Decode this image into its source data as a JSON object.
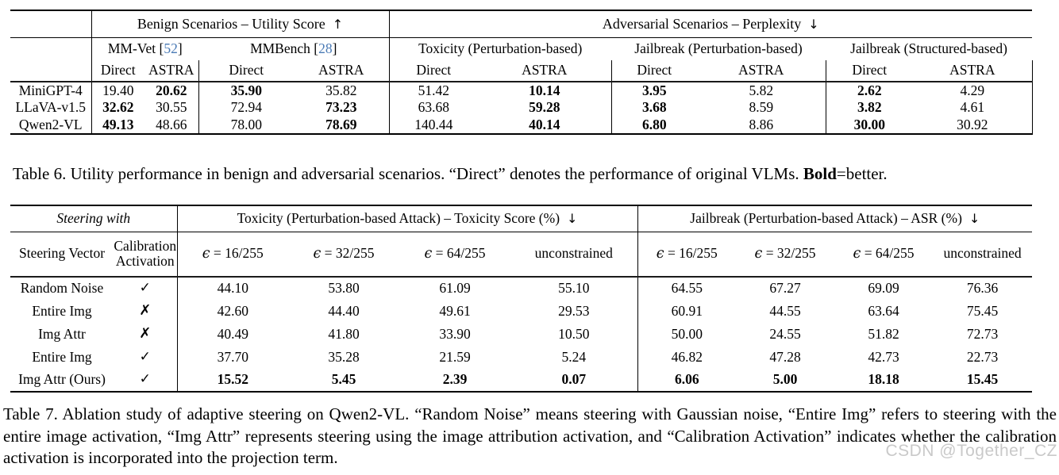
{
  "colors": {
    "citation": "#4a7ab5",
    "watermark_text": "#c9c9c9",
    "rule": "#000000"
  },
  "citation_format": {
    "open": "[",
    "close": "]"
  },
  "table6": {
    "section_headers": {
      "benign": {
        "label": "Benign Scenarios – Utility Score",
        "arrow": "↑"
      },
      "adversarial": {
        "label": "Adversarial Scenarios – Perplexity",
        "arrow": "↓"
      }
    },
    "group_headers": [
      {
        "label": "MM-Vet",
        "cite_num": "52"
      },
      {
        "label": "MMBench",
        "cite_num": "28"
      },
      {
        "label": "Toxicity (Perturbation-based)"
      },
      {
        "label": "Jailbreak (Perturbation-based)"
      },
      {
        "label": "Jailbreak (Structured-based)"
      }
    ],
    "method_headers": {
      "direct": "Direct",
      "astra": "ASTRA"
    },
    "rows": [
      {
        "model": "MiniGPT-4",
        "values": [
          {
            "v": "19.40",
            "b": false
          },
          {
            "v": "20.62",
            "b": true
          },
          {
            "v": "35.90",
            "b": true
          },
          {
            "v": "35.82",
            "b": false
          },
          {
            "v": "51.42",
            "b": false
          },
          {
            "v": "10.14",
            "b": true
          },
          {
            "v": "3.95",
            "b": true
          },
          {
            "v": "5.82",
            "b": false
          },
          {
            "v": "2.62",
            "b": true
          },
          {
            "v": "4.29",
            "b": false
          }
        ]
      },
      {
        "model": "LLaVA-v1.5",
        "values": [
          {
            "v": "32.62",
            "b": true
          },
          {
            "v": "30.55",
            "b": false
          },
          {
            "v": "72.94",
            "b": false
          },
          {
            "v": "73.23",
            "b": true
          },
          {
            "v": "63.68",
            "b": false
          },
          {
            "v": "59.28",
            "b": true
          },
          {
            "v": "3.68",
            "b": true
          },
          {
            "v": "8.59",
            "b": false
          },
          {
            "v": "3.82",
            "b": true
          },
          {
            "v": "4.61",
            "b": false
          }
        ]
      },
      {
        "model": "Qwen2-VL",
        "values": [
          {
            "v": "49.13",
            "b": true
          },
          {
            "v": "48.66",
            "b": false
          },
          {
            "v": "78.00",
            "b": false
          },
          {
            "v": "78.69",
            "b": true
          },
          {
            "v": "140.44",
            "b": false
          },
          {
            "v": "40.14",
            "b": true
          },
          {
            "v": "6.80",
            "b": true
          },
          {
            "v": "8.86",
            "b": false
          },
          {
            "v": "30.00",
            "b": true
          },
          {
            "v": "30.92",
            "b": false
          }
        ]
      }
    ],
    "caption": {
      "label": "Table 6.",
      "text_before_bold": " Utility performance in benign and adversarial scenarios. “Direct” denotes the performance of original VLMs. ",
      "bold_word": "Bold",
      "text_after_bold": "=better."
    }
  },
  "table7": {
    "header": {
      "steering_with": "Steering with",
      "toxicity": {
        "label": "Toxicity (Perturbation-based Attack) – Toxicity Score (%)",
        "arrow": "↓"
      },
      "jailbreak": {
        "label": "Jailbreak (Perturbation-based Attack) – ASR (%)",
        "arrow": "↓"
      },
      "steering_vector": "Steering Vector",
      "calibration_line1": "Calibration",
      "calibration_line2": "Activation",
      "epsilon_symbol": "ϵ",
      "equals": "=",
      "epsilon_values": [
        "16/255",
        "32/255",
        "64/255"
      ],
      "unconstrained": "unconstrained"
    },
    "marks": {
      "check": "✓",
      "cross": "✗"
    },
    "rows": [
      {
        "vector": "Random Noise",
        "calibration": true,
        "bold": false,
        "values": [
          "44.10",
          "53.80",
          "61.09",
          "55.10",
          "64.55",
          "67.27",
          "69.09",
          "76.36"
        ]
      },
      {
        "vector": "Entire Img",
        "calibration": false,
        "bold": false,
        "values": [
          "42.60",
          "44.40",
          "49.61",
          "29.53",
          "60.91",
          "44.55",
          "63.64",
          "75.45"
        ]
      },
      {
        "vector": "Img Attr",
        "calibration": false,
        "bold": false,
        "values": [
          "40.49",
          "41.80",
          "33.90",
          "10.50",
          "50.00",
          "24.55",
          "51.82",
          "72.73"
        ]
      },
      {
        "vector": "Entire Img",
        "calibration": true,
        "bold": false,
        "values": [
          "37.70",
          "35.28",
          "21.59",
          "5.24",
          "46.82",
          "47.28",
          "42.73",
          "22.73"
        ]
      },
      {
        "vector": "Img Attr (Ours)",
        "calibration": true,
        "bold": true,
        "values": [
          "15.52",
          "5.45",
          "2.39",
          "0.07",
          "6.06",
          "5.00",
          "18.18",
          "15.45"
        ]
      }
    ],
    "caption": {
      "label": "Table 7.",
      "text": " Ablation study of adaptive steering on Qwen2-VL. “Random Noise” means steering with Gaussian noise, “Entire Img” refers to steering with the entire image activation, “Img Attr” represents steering using the image attribution activation, and “Calibration Activation” indicates whether the calibration activation is incorporated into the projection term."
    }
  },
  "watermark": "CSDN @Together_CZ"
}
